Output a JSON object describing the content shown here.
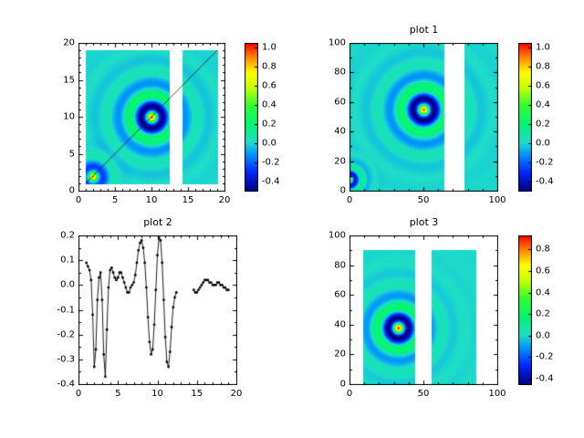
{
  "window": {
    "background": "#ffffff"
  },
  "colormap": {
    "name": "rainbow-jet",
    "stops": [
      {
        "t": 0.0,
        "color": "#000082"
      },
      {
        "t": 0.13,
        "color": "#0028ff"
      },
      {
        "t": 0.25,
        "color": "#0096ff"
      },
      {
        "t": 0.33,
        "color": "#1edcc8"
      },
      {
        "t": 0.45,
        "color": "#00f578"
      },
      {
        "t": 0.58,
        "color": "#32ff32"
      },
      {
        "t": 0.7,
        "color": "#c8ff00"
      },
      {
        "t": 0.8,
        "color": "#ffff00"
      },
      {
        "t": 0.9,
        "color": "#ff8c00"
      },
      {
        "t": 1.0,
        "color": "#ff0000"
      }
    ]
  },
  "chart_data": [
    {
      "id": "tl",
      "type": "heatmap",
      "title": "",
      "x_range": [
        0,
        20
      ],
      "y_range": [
        0,
        20
      ],
      "x_ticks": [
        0,
        5,
        10,
        15,
        20
      ],
      "x_tick_labels": [
        "0",
        "5",
        "10",
        "15",
        "20"
      ],
      "y_ticks": [
        0,
        5,
        10,
        15,
        20
      ],
      "y_tick_labels": [
        "0",
        "5",
        "10",
        "15",
        "20"
      ],
      "minor_step_x": 1,
      "minor_step_y": 1,
      "value_range": [
        -0.5,
        1.05
      ],
      "colorbar": {
        "ticks": [
          1.0,
          0.8,
          0.6,
          0.4,
          0.2,
          0.0,
          -0.2,
          -0.4
        ],
        "labels": [
          "1.0",
          "0.8",
          "0.6",
          "0.4",
          "0.2",
          "0.0",
          "-0.2",
          "-0.4"
        ]
      },
      "data_blocks": [
        {
          "x0": 1.0,
          "x1": 12.4,
          "y0": 1.0,
          "y1": 19.0
        },
        {
          "x0": 14.2,
          "x1": 19.0,
          "y0": 1.0,
          "y1": 19.0
        }
      ],
      "sources": [
        {
          "cx": 10,
          "cy": 10,
          "amp": 1.0,
          "k": 2.0,
          "decay": 2.2
        },
        {
          "cx": 2,
          "cy": 2,
          "amp": 1.0,
          "k": 2.0,
          "decay": 1.1
        }
      ],
      "line": {
        "x0": 1,
        "y0": 1,
        "x1": 19,
        "y1": 19
      }
    },
    {
      "id": "tr",
      "type": "heatmap",
      "title": "plot 1",
      "x_range": [
        0,
        100
      ],
      "y_range": [
        0,
        100
      ],
      "x_ticks": [
        0,
        50,
        100
      ],
      "x_tick_labels": [
        "0",
        "50",
        "100"
      ],
      "y_ticks": [
        0,
        20,
        40,
        60,
        80,
        100
      ],
      "y_tick_labels": [
        "0",
        "20",
        "40",
        "60",
        "80",
        "100"
      ],
      "minor_step_x": 10,
      "minor_step_y": 10,
      "value_range": [
        -0.5,
        1.05
      ],
      "colorbar": {
        "ticks": [
          1.0,
          0.8,
          0.6,
          0.4,
          0.2,
          0.0,
          -0.2,
          -0.4
        ],
        "labels": [
          "1.0",
          "0.8",
          "0.6",
          "0.4",
          "0.2",
          "0.0",
          "-0.2",
          "-0.4"
        ]
      },
      "data_blocks": [
        {
          "x0": 0,
          "x1": 64,
          "y0": 0,
          "y1": 100
        },
        {
          "x0": 77,
          "x1": 100,
          "y0": 0,
          "y1": 100
        }
      ],
      "sources": [
        {
          "cx": 50,
          "cy": 55,
          "amp": 1.0,
          "k": 0.4,
          "decay": 11
        },
        {
          "cx": 0,
          "cy": 8,
          "amp": 1.0,
          "k": 0.7,
          "decay": 4.5
        }
      ],
      "line": null
    },
    {
      "id": "bl",
      "type": "line",
      "title": "plot 2",
      "x_range": [
        0,
        20
      ],
      "y_range": [
        -0.4,
        0.2
      ],
      "x_ticks": [
        0,
        5,
        10,
        15,
        20
      ],
      "x_tick_labels": [
        "0",
        "5",
        "10",
        "15",
        "20"
      ],
      "y_ticks": [
        0.2,
        0.1,
        0.0,
        -0.1,
        -0.2,
        -0.3,
        -0.4
      ],
      "y_tick_labels": [
        "0.2",
        "0.1",
        "0.0",
        "-0.1",
        "-0.2",
        "-0.3",
        "-0.4"
      ],
      "minor_step_x": 1,
      "minor_step_y": 0.05,
      "x": [
        1.0,
        1.2,
        1.4,
        1.6,
        1.8,
        2.0,
        2.2,
        2.4,
        2.6,
        2.8,
        3.0,
        3.2,
        3.4,
        3.6,
        3.8,
        4.0,
        4.2,
        4.4,
        4.6,
        4.8,
        5.0,
        5.2,
        5.4,
        5.6,
        5.8,
        6.0,
        6.2,
        6.4,
        6.6,
        6.8,
        7.0,
        7.2,
        7.4,
        7.6,
        7.8,
        8.0,
        8.2,
        8.4,
        8.6,
        8.8,
        9.0,
        9.2,
        9.4,
        9.6,
        9.8,
        10.0,
        10.2,
        10.4,
        10.6,
        10.8,
        11.0,
        11.2,
        11.4,
        11.6,
        11.8,
        12.0,
        12.2,
        12.4,
        14.6,
        14.8,
        15.0,
        15.2,
        15.4,
        15.6,
        15.8,
        16.0,
        16.2,
        16.4,
        16.6,
        16.8,
        17.0,
        17.2,
        17.4,
        17.6,
        17.8,
        18.0,
        18.2,
        18.4,
        18.6,
        18.8,
        19.0
      ],
      "y": [
        0.09,
        0.075,
        0.06,
        0.02,
        -0.12,
        -0.33,
        -0.26,
        -0.06,
        0.03,
        0.05,
        -0.06,
        -0.28,
        -0.37,
        -0.18,
        -0.01,
        0.06,
        0.07,
        0.05,
        0.03,
        0.02,
        0.03,
        0.05,
        0.05,
        0.03,
        0.01,
        -0.01,
        -0.03,
        -0.03,
        -0.01,
        0.0,
        0.01,
        0.04,
        0.09,
        0.14,
        0.17,
        0.18,
        0.15,
        0.09,
        -0.01,
        -0.13,
        -0.23,
        -0.28,
        -0.26,
        -0.16,
        -0.02,
        0.12,
        0.19,
        0.18,
        0.09,
        -0.06,
        -0.21,
        -0.31,
        -0.33,
        -0.27,
        -0.17,
        -0.09,
        -0.05,
        -0.03,
        -0.02,
        -0.03,
        -0.03,
        -0.02,
        -0.01,
        0.0,
        0.01,
        0.02,
        0.02,
        0.02,
        0.01,
        0.01,
        0.0,
        0.0,
        0.0,
        0.01,
        0.01,
        0.0,
        0.0,
        -0.01,
        -0.01,
        -0.02,
        -0.02
      ]
    },
    {
      "id": "br",
      "type": "heatmap",
      "title": "plot 3",
      "x_range": [
        0,
        100
      ],
      "y_range": [
        0,
        100
      ],
      "x_ticks": [
        0,
        50,
        100
      ],
      "x_tick_labels": [
        "0",
        "50",
        "100"
      ],
      "y_ticks": [
        0,
        20,
        40,
        60,
        80,
        100
      ],
      "y_tick_labels": [
        "0",
        "20",
        "40",
        "60",
        "80",
        "100"
      ],
      "minor_step_x": 10,
      "minor_step_y": 10,
      "value_range": [
        -0.45,
        0.93
      ],
      "colorbar": {
        "ticks": [
          0.8,
          0.6,
          0.4,
          0.2,
          0.0,
          -0.2,
          -0.4
        ],
        "labels": [
          "0.8",
          "0.6",
          "0.4",
          "0.2",
          "0.0",
          "-0.2",
          "-0.4"
        ]
      },
      "data_blocks": [
        {
          "x0": 9,
          "x1": 44,
          "y0": 0,
          "y1": 90
        },
        {
          "x0": 55,
          "x1": 85,
          "y0": 0,
          "y1": 90
        }
      ],
      "sources": [
        {
          "cx": 33,
          "cy": 38,
          "amp": 0.93,
          "k": 0.42,
          "decay": 10
        }
      ],
      "line": null
    }
  ]
}
